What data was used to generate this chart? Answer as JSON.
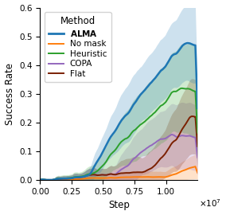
{
  "xlabel": "Step",
  "ylabel": "Success Rate",
  "xlim": [
    0,
    12500000.0
  ],
  "ylim": [
    0.0,
    0.6
  ],
  "xticks": [
    0,
    2500000,
    5000000,
    7500000,
    10000000
  ],
  "xtick_labels": [
    "0.00",
    "0.25",
    "0.50",
    "0.75",
    "1.00"
  ],
  "yticks": [
    0.0,
    0.1,
    0.2,
    0.3,
    0.4,
    0.5,
    0.6
  ],
  "methods": [
    "ALMA",
    "No mask",
    "Heuristic",
    "COPA",
    "Flat"
  ],
  "colors": {
    "ALMA": "#1f77b4",
    "No mask": "#ff7f0e",
    "Heuristic": "#2ca02c",
    "COPA": "#9467bd",
    "Flat": "#7B2000"
  },
  "legend_title": "Method",
  "figsize": [
    2.84,
    2.7
  ],
  "dpi": 100
}
